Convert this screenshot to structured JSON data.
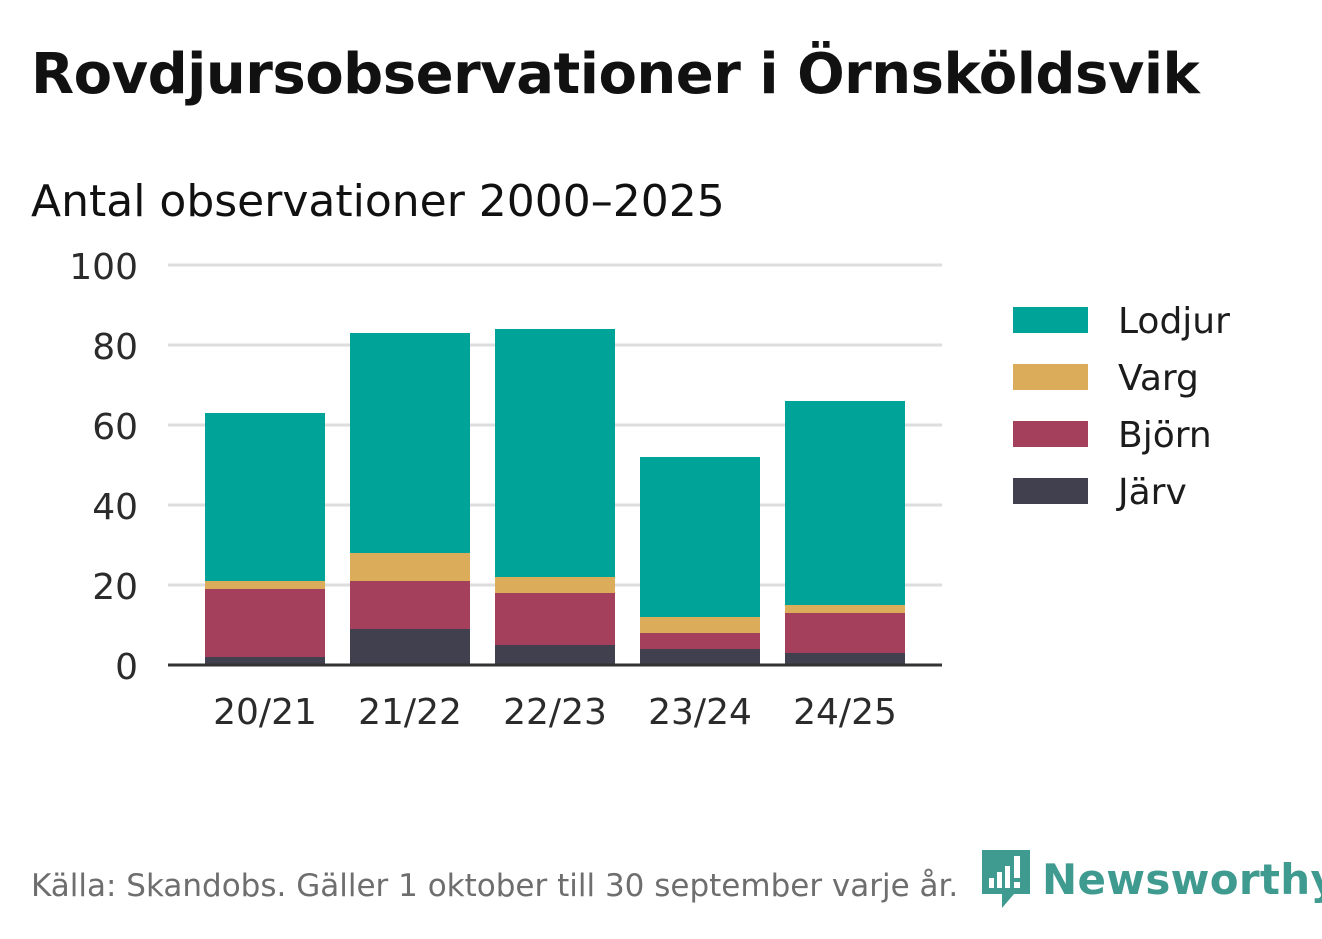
{
  "title": "Rovdjursobservationer i Örnsköldsvik",
  "subtitle": "Antal observationer 2000–2025",
  "footer": "Källa: Skandobs. Gäller 1 oktober till 30 september varje år.",
  "brand": {
    "name": "Newsworthy",
    "logo_icon": "bar-chart-speech-bubble-icon",
    "color": "#3f9a8f"
  },
  "colors": {
    "Lodjur": "#00a398",
    "Varg": "#dbac5a",
    "Björn": "#a5405c",
    "Järv": "#41404e",
    "grid": "#dddddd",
    "axis": "#333333"
  },
  "chart_data": {
    "type": "bar",
    "stacked": true,
    "title": "Antal observationer 2000–2025",
    "xlabel": "",
    "ylabel": "",
    "ylim": [
      0,
      100
    ],
    "yticks": [
      0,
      20,
      40,
      60,
      80,
      100
    ],
    "grid": true,
    "legend_position": "right",
    "categories": [
      "20/21",
      "21/22",
      "22/23",
      "23/24",
      "24/25"
    ],
    "series": [
      {
        "name": "Järv",
        "values": [
          2,
          9,
          5,
          4,
          3
        ]
      },
      {
        "name": "Björn",
        "values": [
          17,
          12,
          13,
          4,
          10
        ]
      },
      {
        "name": "Varg",
        "values": [
          2,
          7,
          4,
          4,
          2
        ]
      },
      {
        "name": "Lodjur",
        "values": [
          42,
          55,
          62,
          40,
          51
        ]
      }
    ],
    "legend_order": [
      "Lodjur",
      "Varg",
      "Björn",
      "Järv"
    ]
  }
}
